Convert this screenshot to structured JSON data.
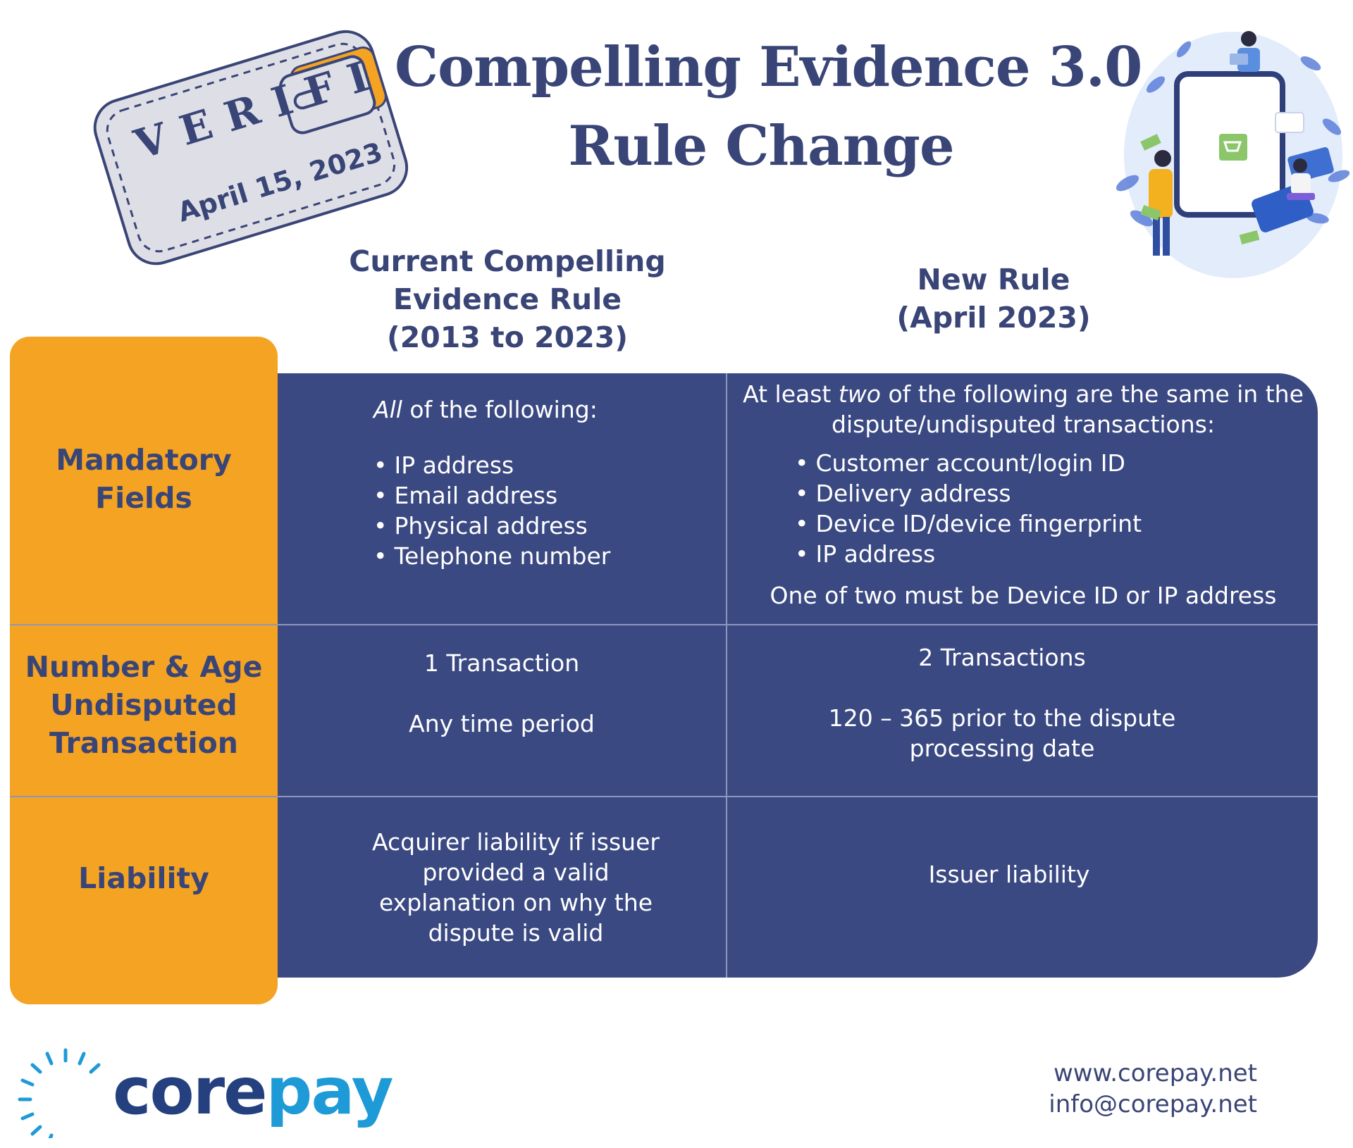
{
  "stamp": {
    "brand": "VERIFI",
    "date": "April 15, 2023"
  },
  "title": {
    "line1": "Compelling Evidence 3.0",
    "line2": "Rule Change"
  },
  "columns": {
    "current": {
      "line1": "Current Compelling",
      "line2": "Evidence Rule",
      "line3": "(2013 to 2023)"
    },
    "new": {
      "line1": "New Rule",
      "line2": "(April 2023)"
    }
  },
  "rows": {
    "mandatory": {
      "label_line1": "Mandatory",
      "label_line2": "Fields",
      "current_intro_italic": "All",
      "current_intro_rest": " of the following:",
      "current_items": [
        "IP address",
        "Email address",
        "Physical address",
        "Telephone number"
      ],
      "new_intro_1": "At least ",
      "new_intro_italic": "two",
      "new_intro_2": " of the following are the same in the",
      "new_intro_line2": "dispute/undisputed transactions:",
      "new_items": [
        "Customer account/login ID",
        "Delivery address",
        "Device ID/device fingerprint",
        "IP address"
      ],
      "new_note": "One of two must be Device ID or IP address"
    },
    "number_age": {
      "label_line1": "Number & Age",
      "label_line2": "Undisputed",
      "label_line3": "Transaction",
      "current_line1": "1 Transaction",
      "current_line2": "Any time period",
      "new_line1": "2 Transactions",
      "new_line2a": "120 – 365 prior to the dispute",
      "new_line2b": "processing date"
    },
    "liability": {
      "label": "Liability",
      "current_lines": [
        "Acquirer liability if issuer",
        "provided a valid",
        "explanation on why the",
        "dispute is valid"
      ],
      "new_line": "Issuer liability"
    }
  },
  "footer": {
    "logo_core": "core",
    "logo_pay": "pay",
    "website": "www.corepay.net",
    "email": "info@corepay.net"
  },
  "colors": {
    "navy": "#3a4577",
    "panel": "#3b4982",
    "orange": "#f4a322",
    "logo_dark": "#24407e",
    "logo_light": "#1e9bd7"
  }
}
